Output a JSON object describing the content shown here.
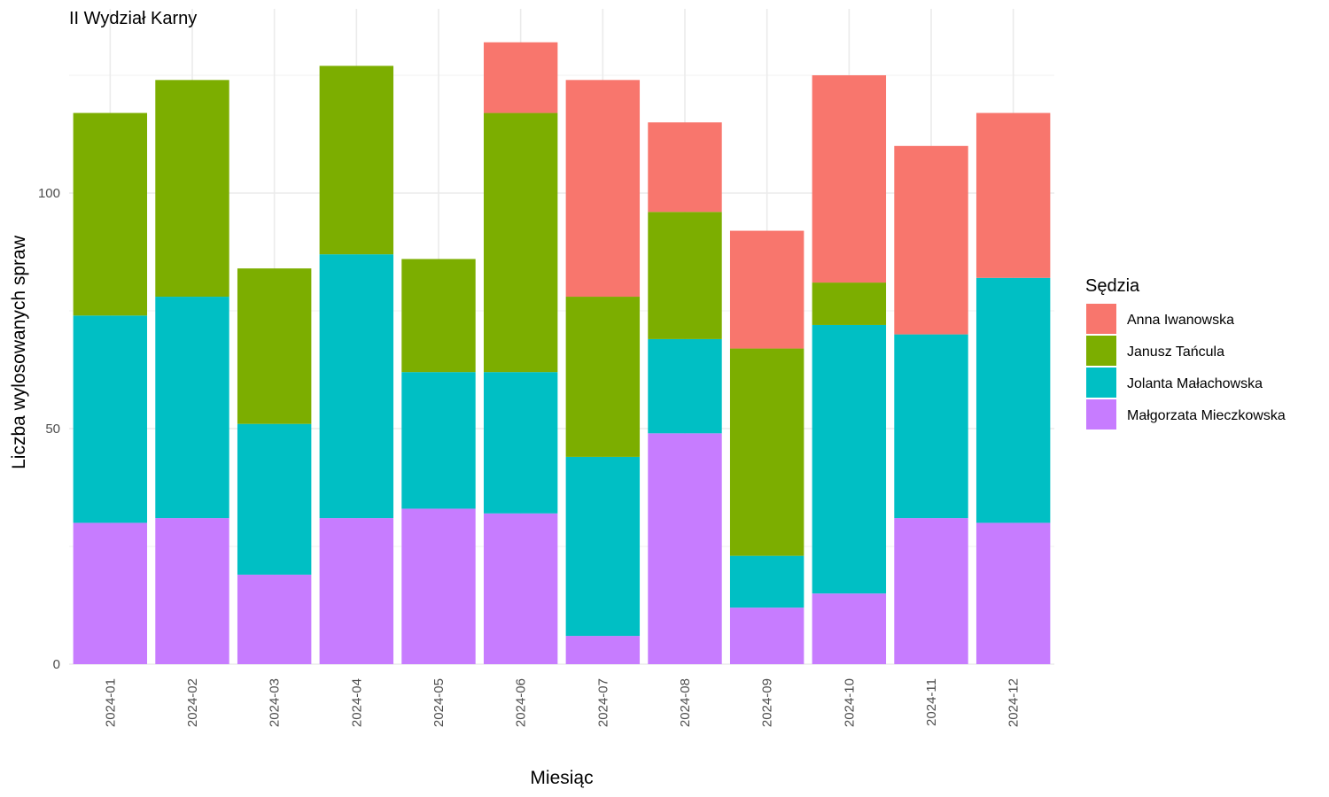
{
  "chart_data": {
    "type": "bar",
    "stacked": true,
    "title": "II Wydział Karny",
    "xlabel": "Miesiąc",
    "ylabel": "Liczba wylosowanych spraw",
    "categories": [
      "2024-01",
      "2024-02",
      "2024-03",
      "2024-04",
      "2024-05",
      "2024-06",
      "2024-07",
      "2024-08",
      "2024-09",
      "2024-10",
      "2024-11",
      "2024-12"
    ],
    "y_ticks": [
      0,
      50,
      100
    ],
    "ylim": [
      0,
      138
    ],
    "grid": true,
    "legend": {
      "title": "Sędzia",
      "placement": "right"
    },
    "series": [
      {
        "name": "Anna Iwanowska",
        "color": "#F8766D",
        "values": [
          0,
          0,
          0,
          0,
          0,
          15,
          46,
          19,
          25,
          44,
          40,
          35
        ]
      },
      {
        "name": "Janusz Tańcula",
        "color": "#7CAE00",
        "values": [
          43,
          46,
          33,
          40,
          24,
          55,
          34,
          27,
          44,
          9,
          0,
          0
        ]
      },
      {
        "name": "Jolanta Małachowska",
        "color": "#00BFC4",
        "values": [
          44,
          47,
          32,
          56,
          29,
          30,
          38,
          20,
          11,
          57,
          39,
          52
        ]
      },
      {
        "name": "Małgorzata Mieczkowska",
        "color": "#C77CFF",
        "values": [
          30,
          31,
          19,
          31,
          33,
          32,
          6,
          49,
          12,
          15,
          31,
          30
        ]
      }
    ]
  }
}
